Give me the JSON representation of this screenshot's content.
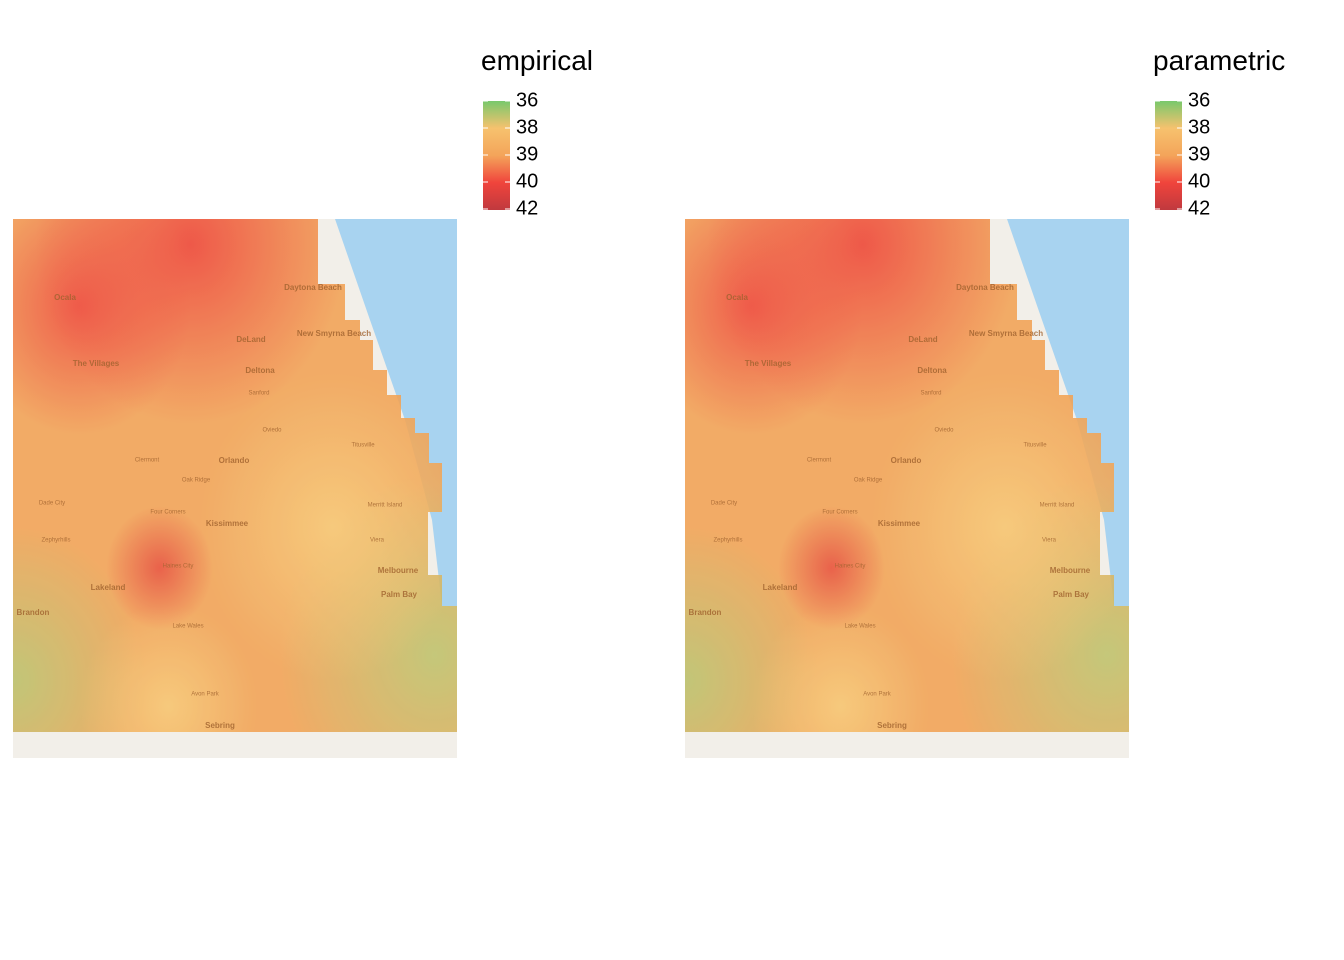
{
  "panels": [
    {
      "legend": {
        "title": "empirical",
        "ticks": [
          36,
          38,
          39,
          40,
          42
        ]
      },
      "places": [
        "Ocala",
        "The Villages",
        "DeLand",
        "Deltona",
        "Daytona Beach",
        "New Smyrna Beach",
        "Orlando",
        "Kissimmee",
        "Lakeland",
        "Brandon",
        "Melbourne",
        "Palm Bay",
        "Sebring",
        "Clermont",
        "Oak Ridge",
        "Four Corners",
        "Haines City",
        "Lake Wales",
        "Avon Park",
        "Dade City",
        "Zephyrhills",
        "Sanford",
        "Oviedo",
        "Titusville",
        "Merritt Island",
        "Viera"
      ]
    },
    {
      "legend": {
        "title": "parametric",
        "ticks": [
          36,
          38,
          39,
          40,
          42
        ]
      },
      "places": [
        "Ocala",
        "The Villages",
        "DeLand",
        "Deltona",
        "Daytona Beach",
        "New Smyrna Beach",
        "Orlando",
        "Kissimmee",
        "Lakeland",
        "Brandon",
        "Melbourne",
        "Palm Bay",
        "Sebring",
        "Clermont",
        "Oak Ridge",
        "Four Corners",
        "Haines City",
        "Lake Wales",
        "Avon Park",
        "Dade City",
        "Zephyrhills",
        "Sanford",
        "Oviedo",
        "Titusville",
        "Merritt Island",
        "Viera"
      ]
    }
  ]
}
